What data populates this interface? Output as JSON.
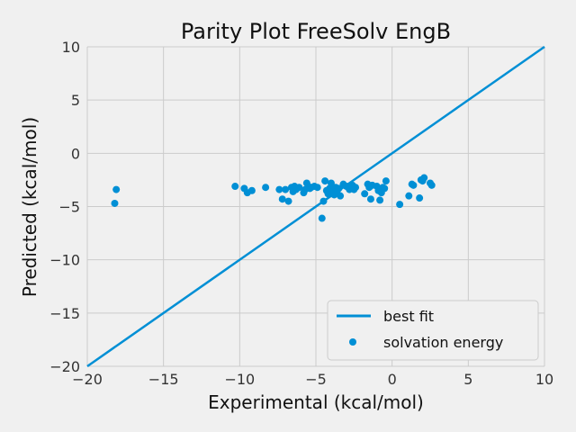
{
  "chart_data": {
    "type": "scatter",
    "title": "Parity Plot FreeSolv EngB",
    "xlabel": "Experimental (kcal/mol)",
    "ylabel": "Predicted (kcal/mol)",
    "xlim": [
      -20,
      10
    ],
    "ylim": [
      -20,
      10
    ],
    "xticks": [
      "−20",
      "−15",
      "−10",
      "−5",
      "0",
      "5",
      "10"
    ],
    "yticks": [
      "10",
      "5",
      "0",
      "−5",
      "−10",
      "−15",
      "−20"
    ],
    "grid": true,
    "legend_position": "bottom-right",
    "colors": {
      "series": "#008fd5",
      "background": "#f0f0f0",
      "grid": "#cbcbcb"
    },
    "series": [
      {
        "name": "best fit",
        "type": "line",
        "x": [
          -20,
          10
        ],
        "y": [
          -20,
          10
        ]
      },
      {
        "name": "solvation energy",
        "type": "scatter",
        "x": [
          -18.2,
          -18.1,
          -10.3,
          -9.7,
          -9.5,
          -9.2,
          -8.3,
          -7.4,
          -7.2,
          -7.0,
          -6.8,
          -6.6,
          -6.5,
          -6.4,
          -6.3,
          -6.1,
          -5.8,
          -5.7,
          -5.6,
          -5.5,
          -5.4,
          -5.3,
          -5.1,
          -4.9,
          -4.6,
          -4.5,
          -4.4,
          -4.3,
          -4.2,
          -4.1,
          -4.0,
          -3.9,
          -3.8,
          -3.7,
          -3.6,
          -3.5,
          -3.4,
          -3.2,
          -3.0,
          -2.8,
          -2.6,
          -2.5,
          -2.4,
          -1.8,
          -1.6,
          -1.5,
          -1.4,
          -1.3,
          -1.0,
          -0.9,
          -0.8,
          -0.7,
          -0.6,
          -0.5,
          -0.4,
          0.5,
          1.1,
          1.3,
          1.4,
          1.8,
          1.9,
          2.0,
          2.1,
          2.5,
          2.6
        ],
        "y": [
          -4.7,
          -3.4,
          -3.1,
          -3.3,
          -3.7,
          -3.5,
          -3.2,
          -3.4,
          -4.3,
          -3.4,
          -4.5,
          -3.2,
          -3.6,
          -3.1,
          -3.4,
          -3.2,
          -3.7,
          -3.4,
          -2.8,
          -3.1,
          -3.3,
          -3.2,
          -3.1,
          -3.2,
          -6.1,
          -4.5,
          -2.6,
          -3.5,
          -3.8,
          -3.3,
          -2.8,
          -3.6,
          -3.9,
          -3.2,
          -3.5,
          -3.3,
          -4.0,
          -2.9,
          -3.1,
          -3.4,
          -3.0,
          -3.4,
          -3.2,
          -3.8,
          -2.9,
          -3.2,
          -4.3,
          -3.0,
          -3.1,
          -3.5,
          -4.4,
          -3.7,
          -3.2,
          -3.3,
          -2.6,
          -4.8,
          -4.0,
          -2.9,
          -3.0,
          -4.2,
          -2.5,
          -2.6,
          -2.3,
          -2.8,
          -3.0
        ]
      }
    ]
  }
}
